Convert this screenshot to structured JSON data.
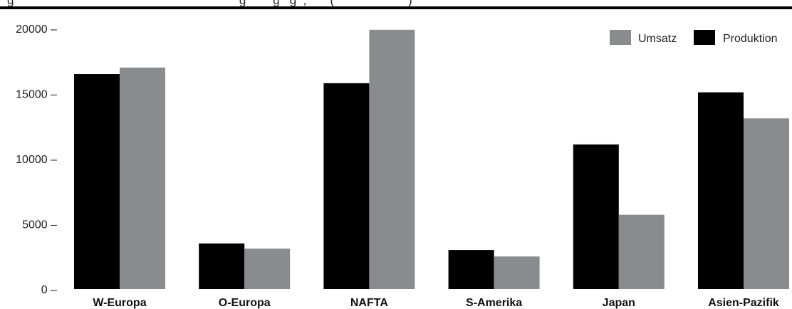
{
  "chart_data": {
    "type": "bar",
    "title_visible_part": "g                                                                   g        g   g  ,       (                      )",
    "categories": [
      "W-Europa",
      "O-Europa",
      "NAFTA",
      "S-Amerika",
      "Japan",
      "Asien-Pazifik"
    ],
    "series": [
      {
        "name": "Produktion",
        "color": "#000000",
        "values": [
          16500,
          3500,
          15800,
          3000,
          11100,
          15100
        ]
      },
      {
        "name": "Umsatz",
        "color": "#8a8b8c",
        "values": [
          17000,
          3100,
          19900,
          2500,
          5700,
          13100
        ]
      }
    ],
    "yticks": [
      0,
      5000,
      10000,
      15000,
      20000
    ],
    "ytick_labels": [
      "0 –",
      "5000 –",
      "10000 –",
      "15000 –",
      "20000 –"
    ],
    "ylim": [
      0,
      20000
    ],
    "legend": {
      "position": "top-right",
      "items": [
        {
          "label": "Umsatz",
          "color": "#8a8b8c"
        },
        {
          "label": "Produktion",
          "color": "#000000"
        }
      ]
    },
    "grid": false
  }
}
